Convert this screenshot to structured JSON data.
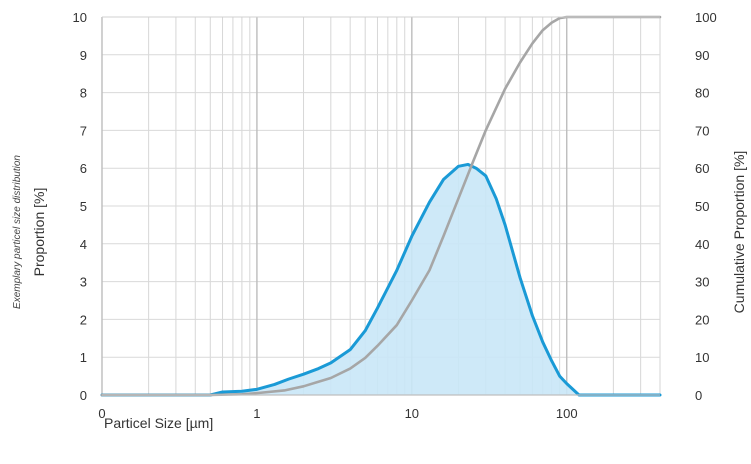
{
  "chart_data": {
    "type": "area",
    "annotation": "Exemplary particel size distribution",
    "xlabel": "Particel Size [µm]",
    "ylabel": "Proportion [%]",
    "y2label": "Cumulative Proportion [%]",
    "x_scale": "log",
    "xlim": [
      0.1,
      400
    ],
    "x_tick_values": [
      0.1,
      1,
      10,
      100
    ],
    "x_tick_labels": [
      "0",
      "1",
      "10",
      "100"
    ],
    "ylim": [
      0,
      10
    ],
    "y_ticks": [
      "0",
      "1",
      "2",
      "3",
      "4",
      "5",
      "6",
      "7",
      "8",
      "9",
      "10"
    ],
    "y2lim": [
      0,
      100
    ],
    "y2_ticks": [
      "0",
      "10",
      "20",
      "30",
      "40",
      "50",
      "60",
      "70",
      "80",
      "90",
      "100"
    ],
    "grid": true,
    "series": [
      {
        "axis": "left",
        "color": "#1a9ad6",
        "fill": "#c9e7f7",
        "points": [
          [
            0.1,
            0
          ],
          [
            0.5,
            0
          ],
          [
            0.6,
            0.08
          ],
          [
            0.8,
            0.1
          ],
          [
            1,
            0.15
          ],
          [
            1.3,
            0.28
          ],
          [
            1.6,
            0.42
          ],
          [
            2,
            0.55
          ],
          [
            2.5,
            0.7
          ],
          [
            3,
            0.85
          ],
          [
            4,
            1.2
          ],
          [
            5,
            1.7
          ],
          [
            6,
            2.3
          ],
          [
            8,
            3.3
          ],
          [
            10,
            4.2
          ],
          [
            13,
            5.1
          ],
          [
            16,
            5.7
          ],
          [
            20,
            6.05
          ],
          [
            23,
            6.1
          ],
          [
            26,
            6.0
          ],
          [
            30,
            5.8
          ],
          [
            35,
            5.2
          ],
          [
            40,
            4.5
          ],
          [
            50,
            3.1
          ],
          [
            60,
            2.1
          ],
          [
            70,
            1.4
          ],
          [
            80,
            0.9
          ],
          [
            90,
            0.5
          ],
          [
            100,
            0.3
          ],
          [
            120,
            0
          ],
          [
            400,
            0
          ]
        ]
      },
      {
        "axis": "right",
        "color": "#a6a6a6",
        "points": [
          [
            0.1,
            0
          ],
          [
            0.5,
            0
          ],
          [
            0.8,
            0.2
          ],
          [
            1,
            0.5
          ],
          [
            1.5,
            1.2
          ],
          [
            2,
            2.3
          ],
          [
            3,
            4.5
          ],
          [
            4,
            7
          ],
          [
            5,
            9.8
          ],
          [
            6,
            13
          ],
          [
            8,
            18.5
          ],
          [
            10,
            25
          ],
          [
            13,
            33
          ],
          [
            16,
            42
          ],
          [
            20,
            52
          ],
          [
            25,
            62
          ],
          [
            30,
            70
          ],
          [
            40,
            81
          ],
          [
            50,
            88
          ],
          [
            60,
            93
          ],
          [
            70,
            96.5
          ],
          [
            80,
            98.5
          ],
          [
            90,
            99.7
          ],
          [
            100,
            100
          ],
          [
            400,
            100
          ]
        ]
      }
    ]
  }
}
